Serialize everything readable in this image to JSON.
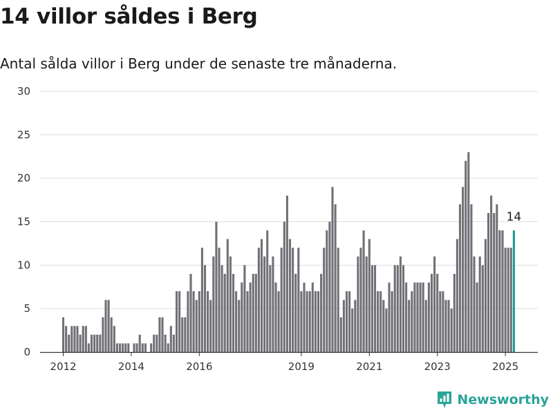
{
  "title": "14 villor såldes i Berg",
  "subtitle": "Antal sålda villor i Berg under de senaste tre månaderna.",
  "brand": {
    "name": "Newsworthy",
    "icon": "newsworthy-logo-icon",
    "color": "#2aa398"
  },
  "chart_data": {
    "type": "bar",
    "title": "14 villor såldes i Berg",
    "subtitle": "Antal sålda villor i Berg under de senaste tre månaderna.",
    "xlabel": "",
    "ylabel": "",
    "ylim": [
      0,
      30
    ],
    "yticks": [
      0,
      5,
      10,
      15,
      20,
      25,
      30
    ],
    "xticks": [
      {
        "label": "2012",
        "index": 0
      },
      {
        "label": "2014",
        "index": 24
      },
      {
        "label": "2016",
        "index": 48
      },
      {
        "label": "2019",
        "index": 84
      },
      {
        "label": "2021",
        "index": 108
      },
      {
        "label": "2023",
        "index": 132
      },
      {
        "label": "2025",
        "index": 156
      }
    ],
    "grid": true,
    "bar_color": "#717076",
    "highlight_color": "#1a9e96",
    "highlight_label": "14",
    "start": "2012-01",
    "values": [
      4,
      3,
      2,
      3,
      3,
      3,
      2,
      3,
      3,
      1,
      2,
      2,
      2,
      2,
      4,
      6,
      6,
      4,
      3,
      1,
      1,
      1,
      1,
      1,
      0,
      1,
      1,
      2,
      1,
      1,
      0,
      1,
      2,
      2,
      4,
      4,
      2,
      1,
      3,
      2,
      7,
      7,
      4,
      4,
      7,
      9,
      7,
      6,
      7,
      12,
      10,
      7,
      6,
      11,
      15,
      12,
      10,
      9,
      13,
      11,
      9,
      7,
      6,
      8,
      10,
      7,
      8,
      9,
      9,
      12,
      13,
      11,
      14,
      10,
      11,
      8,
      7,
      12,
      15,
      18,
      13,
      12,
      9,
      12,
      7,
      8,
      7,
      7,
      8,
      7,
      7,
      9,
      12,
      14,
      15,
      19,
      17,
      12,
      4,
      6,
      7,
      7,
      5,
      6,
      11,
      12,
      14,
      11,
      13,
      10,
      10,
      7,
      7,
      6,
      5,
      8,
      7,
      10,
      10,
      11,
      10,
      8,
      6,
      7,
      8,
      8,
      8,
      8,
      6,
      8,
      9,
      11,
      9,
      7,
      7,
      6,
      6,
      5,
      9,
      13,
      17,
      19,
      22,
      23,
      17,
      11,
      8,
      11,
      10,
      13,
      16,
      18,
      16,
      17,
      14,
      14,
      12,
      12,
      12,
      14
    ]
  }
}
